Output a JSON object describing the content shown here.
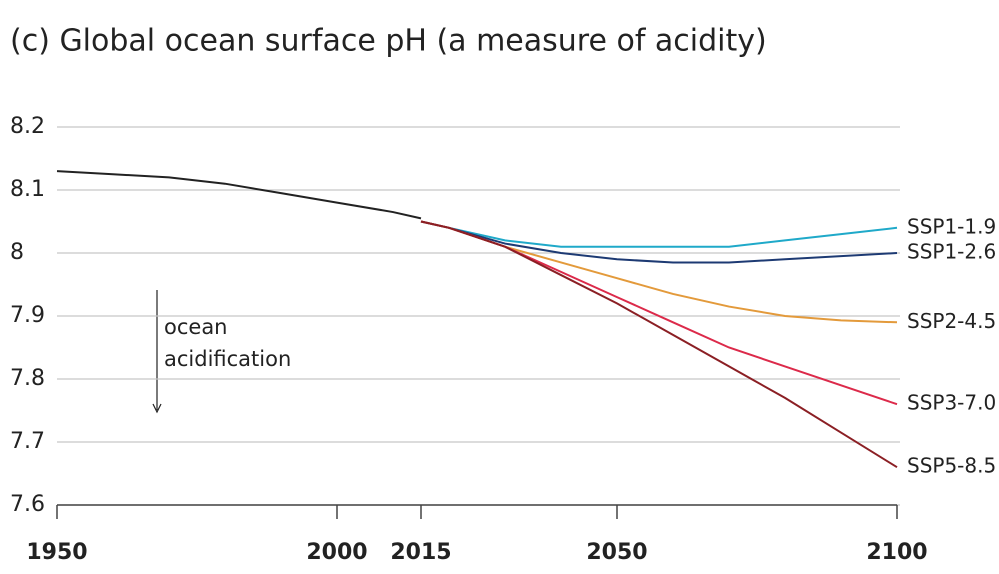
{
  "chart_data": {
    "type": "line",
    "title": "(c) Global ocean surface pH (a measure of acidity)",
    "annotation": [
      "ocean",
      "acidification"
    ],
    "xlim": [
      1950,
      2100
    ],
    "xticks": [
      1950,
      2000,
      2015,
      2050,
      2100
    ],
    "ylim": [
      7.6,
      8.2
    ],
    "yticks": [
      7.6,
      7.7,
      7.8,
      7.9,
      8.0,
      8.1,
      8.2
    ],
    "grid": true,
    "series": [
      {
        "name": null,
        "color": "#222222",
        "x": [
          1950,
          1960,
          1970,
          1980,
          1990,
          2000,
          2010,
          2015
        ],
        "values": [
          8.13,
          8.125,
          8.12,
          8.11,
          8.095,
          8.08,
          8.065,
          8.055
        ]
      },
      {
        "name": "SSP1-1.9",
        "color": "#1fa9c9",
        "x": [
          2015,
          2020,
          2030,
          2040,
          2050,
          2060,
          2070,
          2080,
          2090,
          2100
        ],
        "values": [
          8.05,
          8.04,
          8.02,
          8.01,
          8.01,
          8.01,
          8.01,
          8.02,
          8.03,
          8.04
        ]
      },
      {
        "name": "SSP1-2.6",
        "color": "#1d3a73",
        "x": [
          2015,
          2020,
          2030,
          2040,
          2050,
          2060,
          2070,
          2080,
          2090,
          2100
        ],
        "values": [
          8.05,
          8.04,
          8.015,
          8.0,
          7.99,
          7.985,
          7.985,
          7.99,
          7.995,
          8.0
        ]
      },
      {
        "name": "SSP2-4.5",
        "color": "#e39a3b",
        "x": [
          2015,
          2020,
          2030,
          2040,
          2050,
          2060,
          2070,
          2080,
          2090,
          2100
        ],
        "values": [
          8.05,
          8.04,
          8.01,
          7.985,
          7.96,
          7.935,
          7.915,
          7.9,
          7.893,
          7.89
        ]
      },
      {
        "name": "SSP3-7.0",
        "color": "#dc2a4a",
        "x": [
          2015,
          2020,
          2030,
          2040,
          2050,
          2060,
          2070,
          2080,
          2090,
          2100
        ],
        "values": [
          8.05,
          8.04,
          8.01,
          7.97,
          7.93,
          7.89,
          7.85,
          7.82,
          7.79,
          7.76
        ]
      },
      {
        "name": "SSP5-8.5",
        "color": "#8b1f24",
        "x": [
          2015,
          2020,
          2030,
          2040,
          2050,
          2060,
          2070,
          2080,
          2090,
          2100
        ],
        "values": [
          8.05,
          8.04,
          8.01,
          7.965,
          7.92,
          7.87,
          7.82,
          7.77,
          7.715,
          7.66
        ]
      }
    ]
  }
}
